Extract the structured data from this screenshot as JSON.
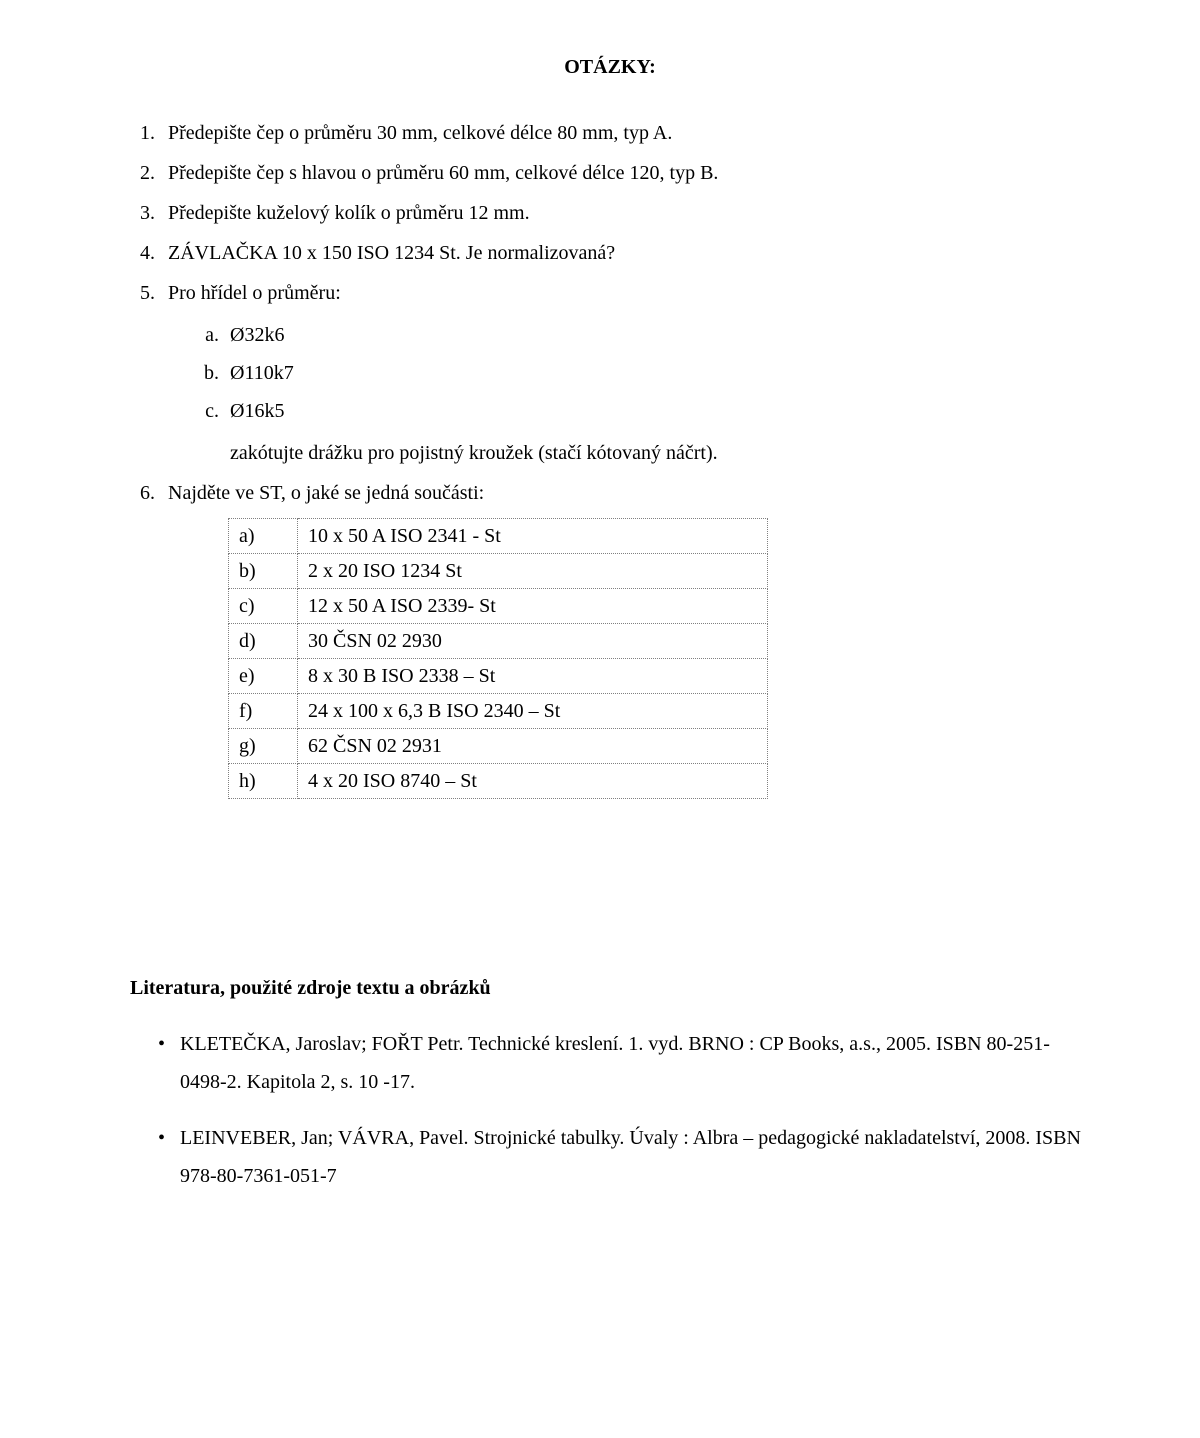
{
  "title": "OTÁZKY:",
  "questions": {
    "q1": "Předepište čep o průměru 30 mm, celkové délce 80 mm, typ A.",
    "q2": "Předepište čep s hlavou o průměru 60 mm, celkové délce 120, typ B.",
    "q3": "Předepište kuželový kolík o průměru 12 mm.",
    "q4": "ZÁVLAČKA 10 x 150 ISO 1234 St. Je normalizovaná?",
    "q5": "Pro hřídel o průměru:",
    "q5a": "Ø32k6",
    "q5b": "Ø110k7",
    "q5c": "Ø16k5",
    "q5note": "zakótujte drážku pro pojistný kroužek (stačí kótovaný náčrt).",
    "q6": "Najděte ve ST, o jaké se jedná součásti:"
  },
  "parts_table": {
    "rows": [
      [
        "a)",
        "10 x 50 A ISO 2341 - St"
      ],
      [
        "b)",
        "2 x 20 ISO 1234 St"
      ],
      [
        "c)",
        "12 x 50 A ISO 2339- St"
      ],
      [
        "d)",
        "30 ČSN 02 2930"
      ],
      [
        "e)",
        "8 x 30 B ISO 2338 – St"
      ],
      [
        "f)",
        "24 x 100 x 6,3 B ISO 2340 – St"
      ],
      [
        "g)",
        "62 ČSN 02 2931"
      ],
      [
        "h)",
        "4 x 20 ISO 8740 – St"
      ]
    ]
  },
  "literature": {
    "heading": "Literatura, použité zdroje textu a obrázků",
    "items": [
      "KLETEČKA, Jaroslav; FOŘT Petr. Technické kreslení. 1. vyd. BRNO : CP Books, a.s., 2005. ISBN 80-251-0498-2. Kapitola 2, s. 10 -17.",
      "LEINVEBER, Jan; VÁVRA, Pavel. Strojnické tabulky. Úvaly : Albra – pedagogické nakladatelství, 2008. ISBN 978-80-7361-051-7"
    ]
  }
}
